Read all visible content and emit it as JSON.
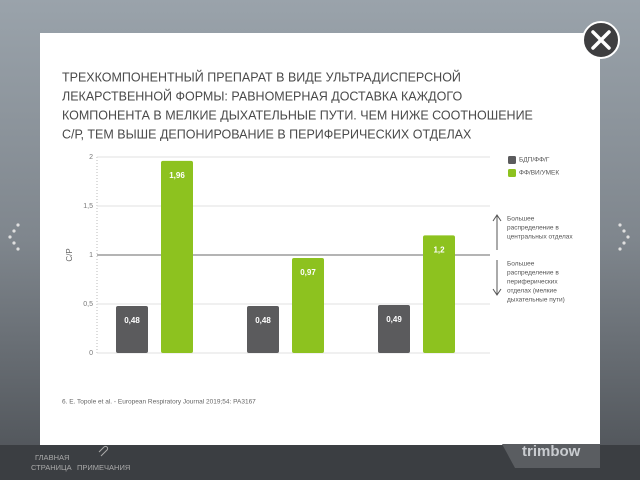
{
  "chart_data": {
    "type": "bar",
    "title": [
      "ТРЕХКОМПОНЕНТНЫЙ ПРЕПАРАТ В ВИДЕ УЛЬТРАДИСПЕРСНОЙ",
      "ЛЕКАРСТВЕННОЙ ФОРМЫ: РАВНОМЕРНАЯ ДОСТАВКА КАЖДОГО",
      "КОМПОНЕНТА В МЕЛКИЕ ДЫХАТЕЛЬНЫЕ ПУТИ. ЧЕМ НИЖЕ СООТНОШЕНИЕ",
      "С/Р, ТЕМ ВЫШЕ ДЕПОНИРОВАНИЕ В ПЕРИФЕРИЧЕСКИХ ОТДЕЛАХ"
    ],
    "ylabel": "С/Р",
    "categories": [
      null,
      null,
      null
    ],
    "series": [
      {
        "name": "БДП/ФФ/Г",
        "color": "#5b5b5d",
        "values": [
          0.48,
          0.48,
          0.49
        ],
        "value_labels": [
          "0,48",
          "0,48",
          "0,49"
        ]
      },
      {
        "name": "ФФ/ВИ/УМЕК",
        "color": "#8dc21f",
        "values": [
          1.96,
          0.97,
          1.2
        ],
        "value_labels": [
          "1,96",
          "0,97",
          "1,2"
        ]
      }
    ],
    "ylim": [
      0,
      2
    ],
    "yticks": [
      0,
      {
        "value": 0.5,
        "label": "0,5"
      },
      1,
      {
        "value": 1.5,
        "label": "1,5"
      },
      2
    ],
    "grid": true,
    "reference_line": 1,
    "annotations": [
      {
        "lines": [
          "Большее",
          "распределение в",
          "центральных отделах"
        ]
      },
      {
        "lines": [
          "Большее",
          "распределение в",
          "периферических",
          "отделах (мелкие",
          "дыхательные пути)"
        ]
      }
    ],
    "source": "6. E. Topole et al. - European Respiratory Journal 2019;54: PA3167"
  },
  "footer": {
    "home": [
      "ГЛАВНАЯ",
      "СТРАНИЦА"
    ],
    "notes": "ПРИМЕЧАНИЯ",
    "logo": "trimbow"
  }
}
